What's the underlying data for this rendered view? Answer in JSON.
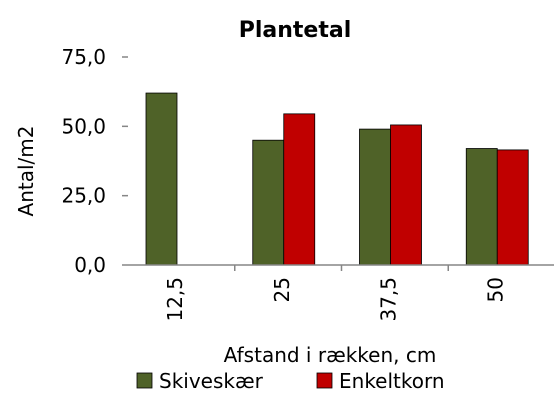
{
  "chart_data": {
    "type": "bar",
    "title": "Plantetal",
    "xlabel": "Afstand i rækken, cm",
    "ylabel": "Antal/m2",
    "categories": [
      "12,5",
      "25",
      "37,5",
      "50"
    ],
    "series": [
      {
        "name": "Skiveskær",
        "values": [
          62,
          45,
          49,
          42
        ],
        "color": "#4f6228"
      },
      {
        "name": "Enkeltkorn",
        "values": [
          null,
          54.5,
          50.5,
          41.5
        ],
        "color": "#c00000"
      }
    ],
    "ylim": [
      0,
      75
    ],
    "yticks": [
      "0,0",
      "25,0",
      "50,0",
      "75,0"
    ],
    "yticks_values": [
      0,
      25,
      50,
      75
    ],
    "grid": false,
    "legend_position": "bottom"
  }
}
